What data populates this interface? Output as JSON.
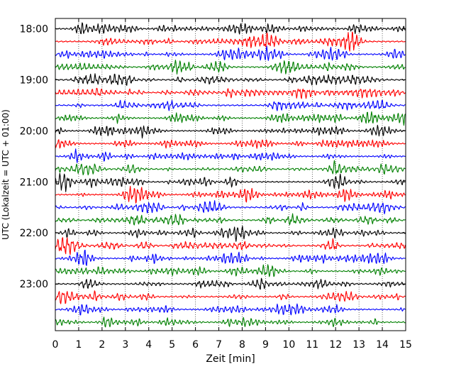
{
  "chart_data": {
    "type": "line",
    "title": "",
    "xlabel": "Zeit  [min]",
    "ylabel": "UTC (Lokalzeit = UTC + 01:00)",
    "xlim": [
      0,
      15
    ],
    "x_ticks": [
      "0",
      "1",
      "2",
      "3",
      "4",
      "5",
      "6",
      "7",
      "8",
      "9",
      "10",
      "11",
      "12",
      "13",
      "14",
      "15"
    ],
    "y_tick_labels": [
      "18:00",
      "19:00",
      "20:00",
      "21:00",
      "22:00",
      "23:00"
    ],
    "grid": {
      "x": true,
      "y": false,
      "style": "dotted"
    },
    "trace_colors": [
      "#000000",
      "#ff0000",
      "#0000ff",
      "#008000"
    ],
    "rows": [
      {
        "start": "18:00"
      },
      {
        "start": "18:15"
      },
      {
        "start": "18:30"
      },
      {
        "start": "18:45"
      },
      {
        "start": "19:00"
      },
      {
        "start": "19:15"
      },
      {
        "start": "19:30"
      },
      {
        "start": "19:45"
      },
      {
        "start": "20:00"
      },
      {
        "start": "20:15"
      },
      {
        "start": "20:30"
      },
      {
        "start": "20:45"
      },
      {
        "start": "21:00"
      },
      {
        "start": "21:15"
      },
      {
        "start": "21:30"
      },
      {
        "start": "21:45"
      },
      {
        "start": "22:00"
      },
      {
        "start": "22:15"
      },
      {
        "start": "22:30"
      },
      {
        "start": "22:45"
      },
      {
        "start": "23:00"
      },
      {
        "start": "23:15"
      },
      {
        "start": "23:30"
      },
      {
        "start": "23:45"
      }
    ]
  }
}
